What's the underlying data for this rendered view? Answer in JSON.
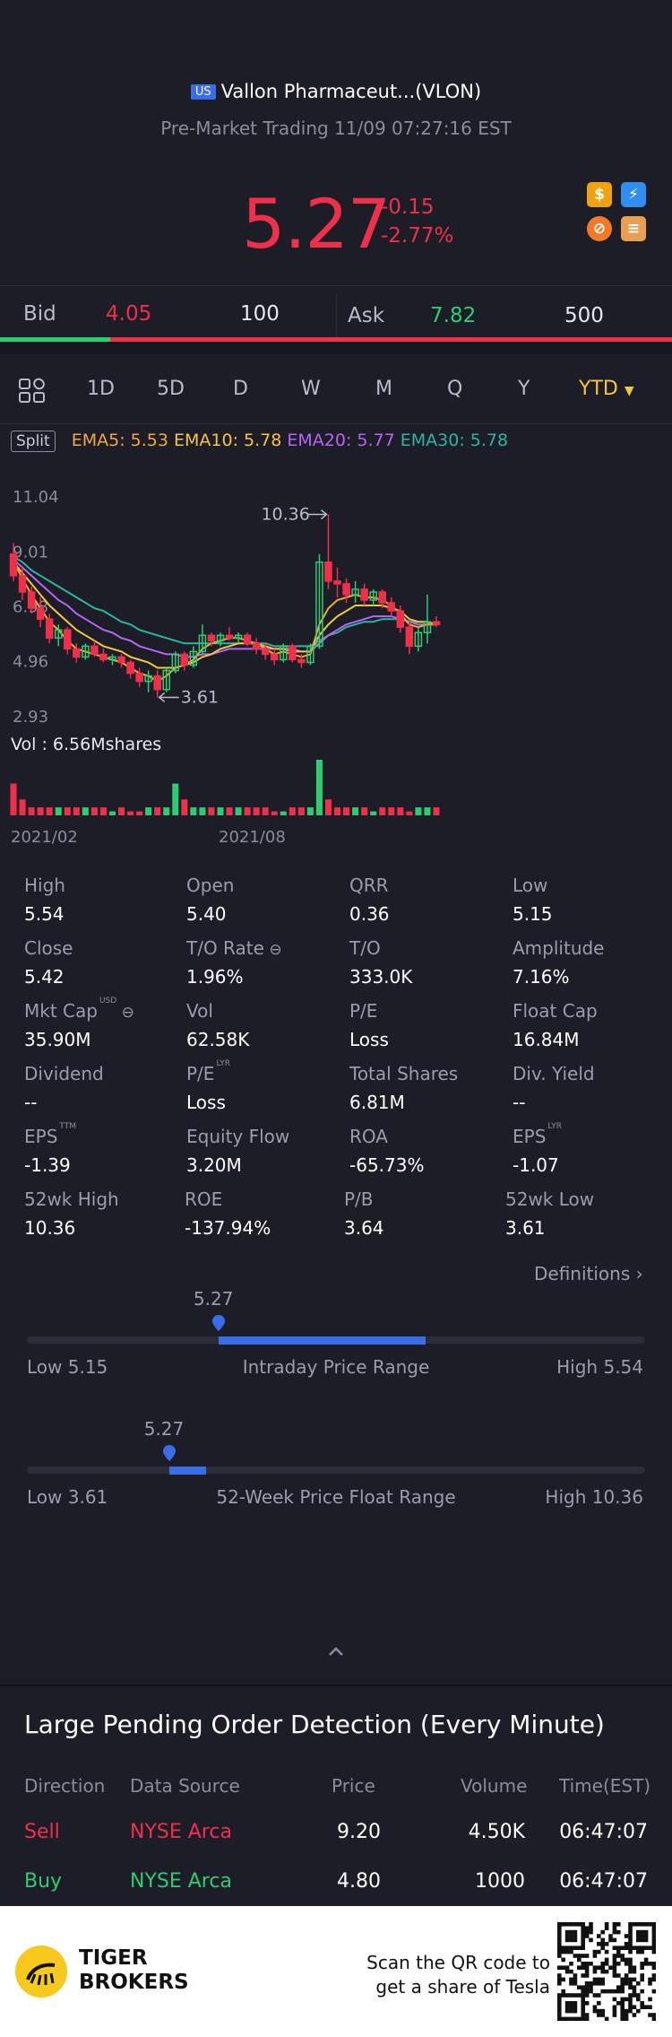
{
  "header": {
    "market_badge": "US",
    "title": "Vallon Pharmaceut...(VLON)",
    "status": "Pre-Market Trading 11/09 07:27:16 EST",
    "price": "5.27",
    "change": "-0.15",
    "change_pct": "-2.77%",
    "icons": [
      "dollar-icon",
      "flash-icon",
      "no-margin-icon",
      "stack-icon"
    ]
  },
  "bidask": {
    "bid_label": "Bid",
    "bid_price": "4.05",
    "bid_size": "100",
    "ask_label": "Ask",
    "ask_price": "7.82",
    "ask_size": "500",
    "bid_ratio": 0.164
  },
  "tabs": {
    "items": [
      "1D",
      "5D",
      "D",
      "W",
      "M",
      "Q",
      "Y"
    ],
    "selected": "YTD"
  },
  "ema": {
    "split": "Split",
    "ema5": "EMA5: 5.53",
    "ema10": "EMA10: 5.78",
    "ema20": "EMA20: 5.77",
    "ema30": "EMA30: 5.78"
  },
  "chart_data": {
    "type": "candlestick",
    "y_ticks": [
      "11.04",
      "9.01",
      "6.98",
      "4.96",
      "2.93"
    ],
    "ylim": [
      2.93,
      11.04
    ],
    "x_ticks": [
      "2021/02",
      "2021/08"
    ],
    "high_annotation": "10.36",
    "low_annotation": "3.61",
    "volume_label": "Vol  : 6.56Mshares",
    "colors": {
      "up": "#2ecc71",
      "down": "#f0304a",
      "ema5": "#f0a93c",
      "ema10": "#f4c542",
      "ema20": "#b866f2",
      "ema30": "#2cb5a0"
    },
    "candles": [
      [
        8.9,
        9.3,
        7.9,
        8.1
      ],
      [
        8.1,
        8.4,
        7.2,
        7.5
      ],
      [
        7.5,
        7.7,
        6.7,
        6.9
      ],
      [
        6.9,
        7.3,
        6.2,
        6.5
      ],
      [
        6.5,
        6.7,
        5.6,
        5.8
      ],
      [
        5.8,
        6.3,
        5.5,
        6.1
      ],
      [
        6.1,
        6.2,
        5.2,
        5.4
      ],
      [
        5.4,
        5.6,
        4.9,
        5.1
      ],
      [
        5.1,
        5.6,
        5.0,
        5.5
      ],
      [
        5.5,
        5.7,
        5.1,
        5.2
      ],
      [
        5.2,
        5.4,
        4.9,
        5.0
      ],
      [
        5.0,
        5.2,
        4.8,
        5.1
      ],
      [
        5.1,
        5.2,
        4.7,
        4.9
      ],
      [
        4.9,
        5.0,
        4.3,
        4.5
      ],
      [
        4.5,
        4.7,
        4.0,
        4.2
      ],
      [
        4.2,
        4.6,
        3.8,
        4.4
      ],
      [
        4.4,
        4.6,
        3.61,
        3.9
      ],
      [
        3.9,
        4.7,
        3.8,
        4.6
      ],
      [
        4.6,
        5.3,
        4.5,
        5.2
      ],
      [
        5.2,
        5.3,
        4.6,
        4.8
      ],
      [
        4.8,
        5.5,
        4.7,
        5.3
      ],
      [
        5.3,
        6.3,
        5.2,
        5.9
      ],
      [
        5.9,
        6.0,
        5.5,
        5.7
      ],
      [
        5.7,
        6.0,
        5.5,
        5.9
      ],
      [
        5.9,
        6.2,
        5.7,
        5.8
      ],
      [
        5.8,
        6.0,
        5.6,
        5.9
      ],
      [
        5.9,
        6.0,
        5.5,
        5.6
      ],
      [
        5.6,
        5.8,
        5.2,
        5.4
      ],
      [
        5.4,
        5.6,
        5.0,
        5.2
      ],
      [
        5.2,
        5.4,
        4.8,
        5.0
      ],
      [
        5.0,
        5.6,
        4.9,
        5.5
      ],
      [
        5.5,
        5.6,
        4.9,
        5.0
      ],
      [
        5.0,
        5.2,
        4.7,
        4.9
      ],
      [
        4.9,
        5.6,
        4.8,
        5.5
      ],
      [
        5.5,
        8.9,
        5.4,
        8.6
      ],
      [
        8.6,
        10.36,
        7.6,
        7.9
      ],
      [
        7.9,
        8.4,
        7.3,
        7.8
      ],
      [
        7.8,
        8.0,
        7.1,
        7.4
      ],
      [
        7.4,
        7.9,
        7.1,
        7.6
      ],
      [
        7.6,
        7.8,
        7.0,
        7.2
      ],
      [
        7.2,
        7.6,
        7.0,
        7.5
      ],
      [
        7.5,
        7.6,
        6.9,
        7.1
      ],
      [
        7.1,
        7.3,
        6.6,
        6.8
      ],
      [
        6.8,
        7.0,
        6.0,
        6.2
      ],
      [
        6.2,
        6.4,
        5.2,
        5.5
      ],
      [
        5.5,
        6.2,
        5.3,
        6.0
      ],
      [
        6.0,
        7.4,
        5.6,
        6.4
      ],
      [
        6.4,
        6.6,
        6.2,
        6.3
      ]
    ],
    "ema5": [
      8.6,
      8.0,
      7.4,
      6.9,
      6.4,
      6.1,
      5.7,
      5.4,
      5.3,
      5.2,
      5.1,
      5.0,
      4.9,
      4.7,
      4.5,
      4.4,
      4.2,
      4.4,
      4.7,
      4.8,
      5.0,
      5.4,
      5.6,
      5.7,
      5.8,
      5.8,
      5.7,
      5.6,
      5.4,
      5.2,
      5.3,
      5.2,
      5.1,
      5.2,
      6.3,
      6.9,
      7.2,
      7.3,
      7.4,
      7.3,
      7.3,
      7.2,
      7.0,
      6.7,
      6.3,
      6.2,
      6.3,
      6.3
    ],
    "ema10": [
      8.6,
      8.2,
      7.8,
      7.4,
      7.0,
      6.7,
      6.4,
      6.1,
      5.9,
      5.7,
      5.5,
      5.4,
      5.3,
      5.1,
      5.0,
      4.9,
      4.7,
      4.7,
      4.7,
      4.8,
      4.9,
      5.1,
      5.2,
      5.4,
      5.5,
      5.6,
      5.6,
      5.6,
      5.5,
      5.4,
      5.4,
      5.3,
      5.3,
      5.3,
      5.9,
      6.3,
      6.6,
      6.8,
      7.0,
      7.0,
      7.0,
      7.0,
      6.9,
      6.8,
      6.5,
      6.4,
      6.4,
      6.3
    ],
    "ema20": [
      8.7,
      8.4,
      8.1,
      7.8,
      7.5,
      7.2,
      7.0,
      6.7,
      6.5,
      6.3,
      6.1,
      6.0,
      5.8,
      5.7,
      5.5,
      5.4,
      5.3,
      5.2,
      5.2,
      5.1,
      5.1,
      5.2,
      5.2,
      5.3,
      5.4,
      5.4,
      5.4,
      5.4,
      5.4,
      5.4,
      5.4,
      5.4,
      5.3,
      5.3,
      5.6,
      5.9,
      6.1,
      6.3,
      6.4,
      6.5,
      6.6,
      6.6,
      6.6,
      6.5,
      6.4,
      6.3,
      6.3,
      6.3
    ],
    "ema30": [
      8.8,
      8.6,
      8.3,
      8.1,
      7.9,
      7.7,
      7.5,
      7.3,
      7.1,
      6.9,
      6.8,
      6.6,
      6.4,
      6.3,
      6.1,
      6.0,
      5.9,
      5.8,
      5.7,
      5.6,
      5.6,
      5.6,
      5.6,
      5.6,
      5.6,
      5.6,
      5.6,
      5.6,
      5.6,
      5.5,
      5.5,
      5.5,
      5.5,
      5.5,
      5.7,
      5.9,
      6.0,
      6.2,
      6.3,
      6.4,
      6.4,
      6.5,
      6.5,
      6.5,
      6.4,
      6.4,
      6.4,
      6.3
    ],
    "volume": [
      4,
      2,
      1,
      1,
      1,
      1,
      1,
      1,
      1,
      1,
      1,
      0.5,
      1,
      0.5,
      0.5,
      1,
      1,
      1,
      4,
      2,
      1,
      1,
      1,
      1,
      1,
      1,
      1,
      1,
      1,
      0.5,
      0.5,
      1,
      1,
      1,
      7,
      2,
      1,
      1,
      1,
      1,
      0.5,
      1,
      1,
      1,
      0.5,
      1,
      1,
      1
    ]
  },
  "stats": [
    {
      "label": "High",
      "value": "5.54"
    },
    {
      "label": "Open",
      "value": "5.40"
    },
    {
      "label": "QRR",
      "value": "0.36"
    },
    {
      "label": "Low",
      "value": "5.15"
    },
    {
      "label": "Close",
      "value": "5.42"
    },
    {
      "label": "T/O Rate",
      "value": "1.96%"
    },
    {
      "label": "T/O",
      "value": "333.0K"
    },
    {
      "label": "Amplitude",
      "value": "7.16%"
    },
    {
      "label": "Mkt Cap",
      "value": "35.90M",
      "sup": "USD"
    },
    {
      "label": "Vol",
      "value": "62.58K"
    },
    {
      "label": "P/E",
      "value": "Loss"
    },
    {
      "label": "Float Cap",
      "value": "16.84M"
    },
    {
      "label": "Dividend",
      "value": "--"
    },
    {
      "label": "P/E",
      "value": "Loss",
      "sup": "LYR"
    },
    {
      "label": "Total Shares",
      "value": "6.81M"
    },
    {
      "label": "Div. Yield",
      "value": "--"
    },
    {
      "label": "EPS",
      "value": "-1.39",
      "sup": "TTM"
    },
    {
      "label": "Equity Flow",
      "value": "3.20M"
    },
    {
      "label": "ROA",
      "value": "-65.73%"
    },
    {
      "label": "EPS",
      "value": "-1.07",
      "sup": "LYR"
    },
    {
      "label": "52wk High",
      "value": "10.36"
    },
    {
      "label": "ROE",
      "value": "-137.94%"
    },
    {
      "label": "P/B",
      "value": "3.64"
    },
    {
      "label": "52wk Low",
      "value": "3.61"
    }
  ],
  "definitions": "Definitions",
  "intraday_range": {
    "marker": "5.27",
    "low": "Low 5.15",
    "title": "Intraday Price Range",
    "high": "High 5.54",
    "fill_start": 0.31,
    "fill_end": 0.645
  },
  "week52_range": {
    "marker": "5.27",
    "low": "Low 3.61",
    "title": "52-Week Price Float Range",
    "high": "High 10.36",
    "fill_start": 0.23,
    "fill_end": 0.29
  },
  "pending": {
    "title": "Large Pending Order Detection (Every Minute)",
    "headers": [
      "Direction",
      "Data Source",
      "Price",
      "Volume",
      "Time(EST)"
    ],
    "rows": [
      {
        "direction": "Sell",
        "source": "NYSE Arca",
        "price": "9.20",
        "volume": "4.50K",
        "time": "06:47:07"
      },
      {
        "direction": "Buy",
        "source": "NYSE Arca",
        "price": "4.80",
        "volume": "1000",
        "time": "06:47:07"
      }
    ]
  },
  "footer": {
    "brand_line1": "TIGER",
    "brand_line2": "BROKERS",
    "scan_line1": "Scan the QR code to",
    "scan_line2": "get a share of Tesla"
  }
}
